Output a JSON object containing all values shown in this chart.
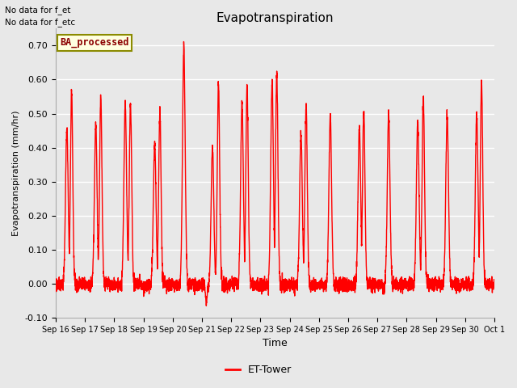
{
  "title": "Evapotranspiration",
  "ylabel": "Evapotranspiration (mm/hr)",
  "xlabel": "Time",
  "ylim": [
    -0.1,
    0.75
  ],
  "yticks": [
    -0.1,
    0.0,
    0.1,
    0.2,
    0.3,
    0.4,
    0.5,
    0.6,
    0.7
  ],
  "line_color": "red",
  "line_width": 1.0,
  "bg_color": "#e8e8e8",
  "plot_bg_color": "#e8e8e8",
  "annotation_text1": "No data for f_et",
  "annotation_text2": "No data for f_etc",
  "legend_label": "ET-Tower",
  "legend_box_text": "BA_processed",
  "x_tick_labels": [
    "Sep 16",
    "Sep 17",
    "Sep 18",
    "Sep 19",
    "Sep 20",
    "Sep 21",
    "Sep 22",
    "Sep 23",
    "Sep 24",
    "Sep 25",
    "Sep 26",
    "Sep 27",
    "Sep 28",
    "Sep 29",
    "Sep 30",
    "Oct 1"
  ],
  "figsize": [
    6.4,
    4.8
  ],
  "dpi": 100,
  "days": 15,
  "day_peaks": [
    [
      0.46,
      0.57
    ],
    [
      0.47,
      0.55
    ],
    [
      0.53,
      0.53
    ],
    [
      0.41,
      0.51
    ],
    [
      0.7,
      null
    ],
    [
      0.4,
      0.59
    ],
    [
      0.53,
      0.58
    ],
    [
      0.59,
      0.62
    ],
    [
      0.44,
      0.53
    ],
    [
      0.49,
      null
    ],
    [
      0.46,
      0.51
    ],
    [
      0.5,
      null
    ],
    [
      0.48,
      0.55
    ],
    [
      0.5,
      null
    ],
    [
      0.5,
      0.59
    ]
  ],
  "dip_day": 5,
  "dip_value": -0.065
}
